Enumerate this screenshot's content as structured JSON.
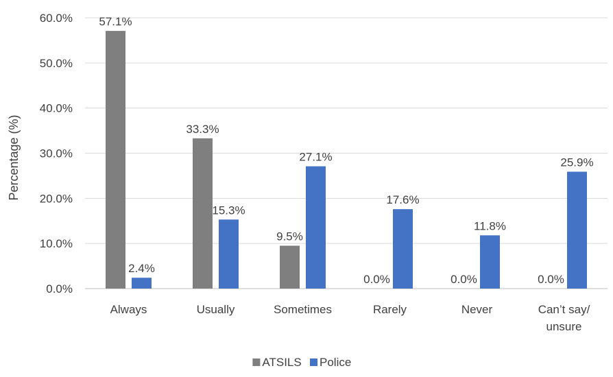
{
  "chart_data": {
    "type": "bar",
    "title": "",
    "xlabel": "",
    "ylabel": "Percentage (%)",
    "ylim": [
      0,
      60
    ],
    "yticks": [
      "0.0%",
      "10.0%",
      "20.0%",
      "30.0%",
      "40.0%",
      "50.0%",
      "60.0%"
    ],
    "ytick_values": [
      0,
      10,
      20,
      30,
      40,
      50,
      60
    ],
    "grid": true,
    "legend_position": "bottom",
    "categories": [
      [
        "Always"
      ],
      [
        "Usually"
      ],
      [
        "Sometimes"
      ],
      [
        "Rarely"
      ],
      [
        "Never"
      ],
      [
        "Can’t say/",
        "unsure"
      ]
    ],
    "series": [
      {
        "name": "ATSILS",
        "color": "#7f7f7f",
        "values": [
          57.1,
          33.3,
          9.5,
          0.0,
          0.0,
          0.0
        ],
        "labels": [
          "57.1%",
          "33.3%",
          "9.5%",
          "0.0%",
          "0.0%",
          "0.0%"
        ]
      },
      {
        "name": "Police",
        "color": "#4472c4",
        "values": [
          2.4,
          15.3,
          27.1,
          17.6,
          11.8,
          25.9
        ],
        "labels": [
          "2.4%",
          "15.3%",
          "27.1%",
          "17.6%",
          "11.8%",
          "25.9%"
        ]
      }
    ]
  }
}
